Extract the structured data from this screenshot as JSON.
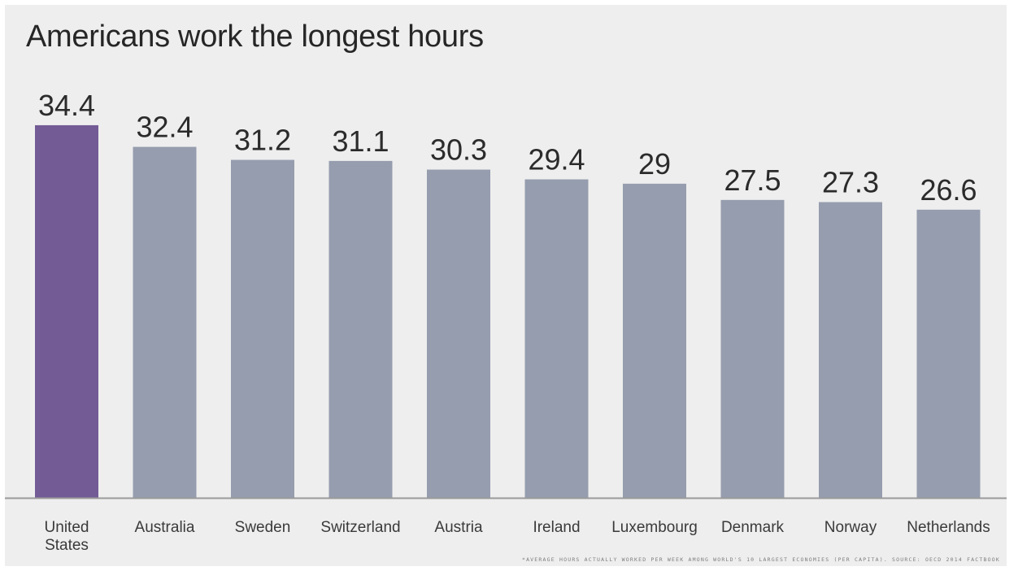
{
  "chart_data": {
    "type": "bar",
    "title": "Americans work the longest hours",
    "categories": [
      "United States",
      "Australia",
      "Sweden",
      "Switzerland",
      "Austria",
      "Ireland",
      "Luxembourg",
      "Denmark",
      "Norway",
      "Netherlands"
    ],
    "category_lines": [
      [
        "United",
        "States"
      ],
      [
        "Australia"
      ],
      [
        "Sweden"
      ],
      [
        "Switzerland"
      ],
      [
        "Austria"
      ],
      [
        "Ireland"
      ],
      [
        "Luxembourg"
      ],
      [
        "Denmark"
      ],
      [
        "Norway"
      ],
      [
        "Netherlands"
      ]
    ],
    "values": [
      34.4,
      32.4,
      31.2,
      31.1,
      30.3,
      29.4,
      29,
      27.5,
      27.3,
      26.6
    ],
    "value_labels": [
      "34.4",
      "32.4",
      "31.2",
      "31.1",
      "30.3",
      "29.4",
      "29",
      "27.5",
      "27.3",
      "26.6"
    ],
    "ylim": [
      0,
      38
    ],
    "grid": false,
    "legend": "none",
    "highlight_index": 0,
    "colors": {
      "highlight": "#735b95",
      "bar": "#959dae",
      "baseline": "#9a9a9a",
      "background": "#eeeeee"
    },
    "note": "*AVERAGE HOURS ACTUALLY WORKED PER WEEK AMONG WORLD'S 10 LARGEST ECONOMIES (PER CAPITA). SOURCE: OECD 2014 FACTBOOK"
  }
}
